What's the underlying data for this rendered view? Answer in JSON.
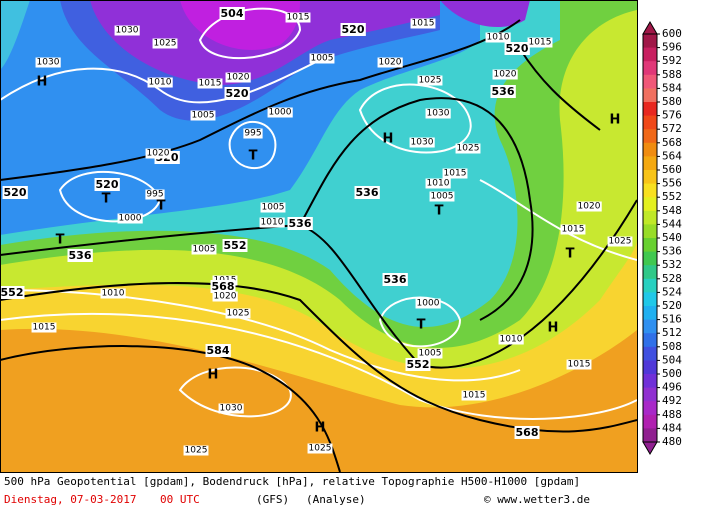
{
  "map": {
    "labels": [
      "504",
      "1030",
      "1025",
      "1030",
      "H",
      "1015",
      "520",
      "1015",
      "1010",
      "520",
      "1015",
      "1005",
      "1020",
      "1020",
      "1025",
      "536",
      "1010",
      "1015",
      "1020",
      "520",
      "1000",
      "1005",
      "995",
      "T",
      "1030",
      "H",
      "1030",
      "1025",
      "520",
      "1020",
      "H",
      "1015",
      "1010",
      "1005",
      "T",
      "536",
      "520",
      "T",
      "995",
      "T",
      "520",
      "1000",
      "1005",
      "1010",
      "536",
      "1020",
      "1015",
      "1025",
      "T",
      "536",
      "552",
      "1005",
      "T",
      "1015",
      "568",
      "1020",
      "552",
      "1010",
      "536",
      "1000",
      "T",
      "1025",
      "1015",
      "1010",
      "H",
      "1005",
      "552",
      "584",
      "H",
      "1015",
      "1015",
      "1030",
      "568",
      "H",
      "1025",
      "1025"
    ]
  },
  "colorbar": {
    "ticks": [
      600,
      596,
      592,
      588,
      584,
      580,
      576,
      572,
      568,
      564,
      560,
      556,
      552,
      548,
      544,
      540,
      536,
      532,
      528,
      524,
      520,
      516,
      512,
      508,
      504,
      500,
      496,
      492,
      488,
      484,
      480
    ],
    "colors": [
      "#a01848",
      "#c82060",
      "#e03878",
      "#f05878",
      "#f07060",
      "#e82820",
      "#f04818",
      "#f06818",
      "#f08c10",
      "#f4a810",
      "#f8c418",
      "#f8e020",
      "#e4f020",
      "#c0e828",
      "#98dc28",
      "#68d030",
      "#40c850",
      "#30c888",
      "#28d0c0",
      "#20c8e8",
      "#20b0f0",
      "#3090f0",
      "#3070e8",
      "#4050e0",
      "#5038d8",
      "#7030d8",
      "#9030d0",
      "#a828c8",
      "#b020b0",
      "#902090"
    ]
  },
  "footer": {
    "description": "500 hPa Geopotential [gpdam], Bodendruck [hPa], relative Topographie H500-H1000 [gpdam]",
    "date": "Dienstag, 07-03-2017",
    "time": "00 UTC",
    "model": "(GFS)",
    "run": "(Analyse)",
    "credit": "© www.wetter3.de"
  }
}
